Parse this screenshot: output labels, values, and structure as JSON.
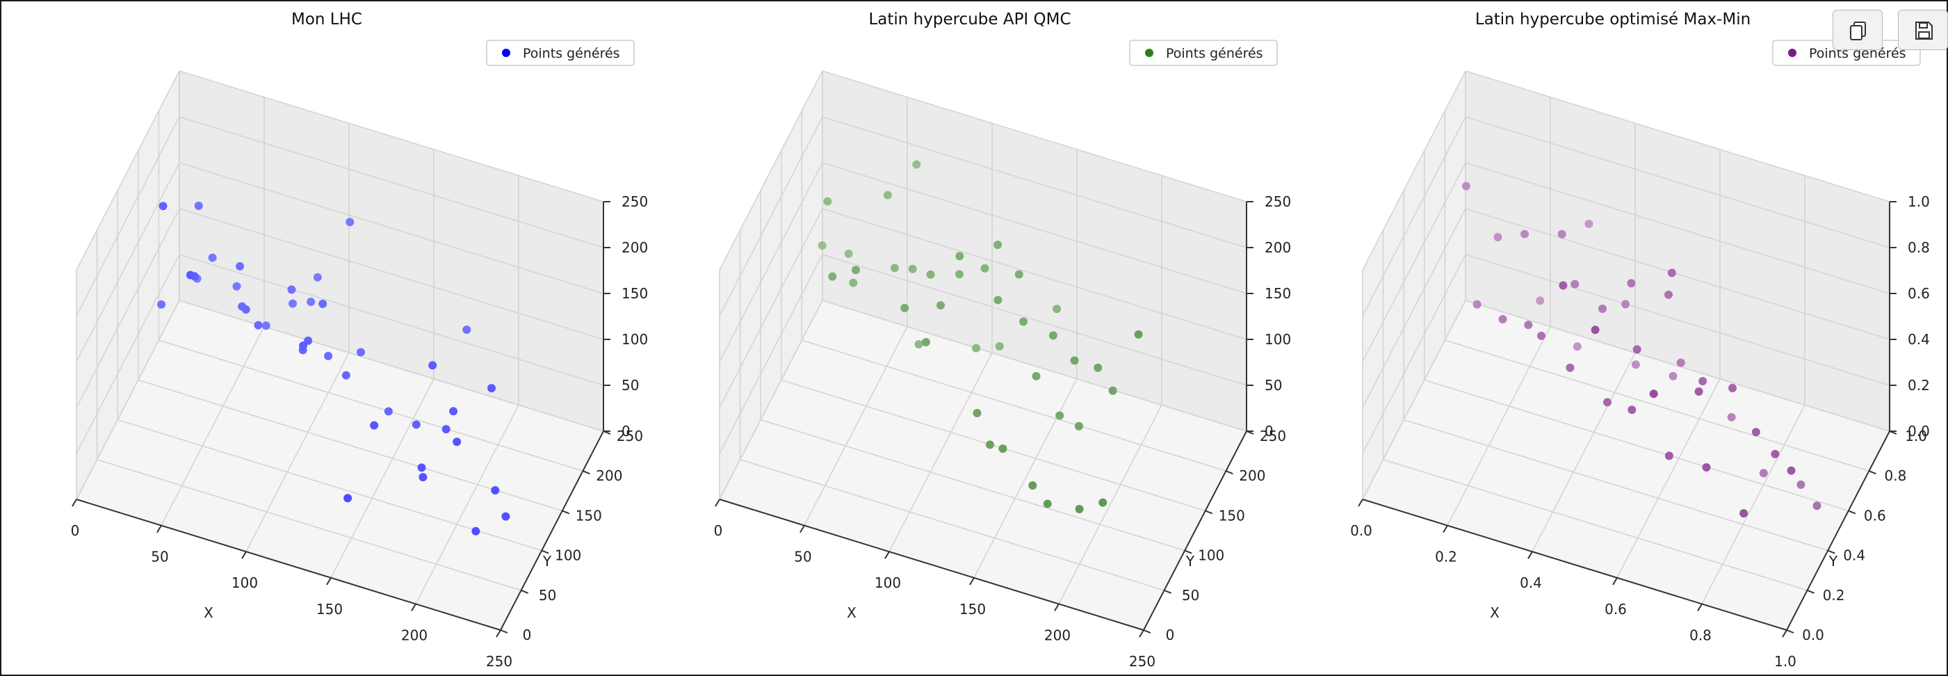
{
  "chart_data": [
    {
      "type": "scatter3d",
      "title": "Mon LHC",
      "xlabel": "X",
      "ylabel": "Y",
      "zlabel": "",
      "xlim": [
        0,
        250
      ],
      "ylim": [
        0,
        250
      ],
      "zlim": [
        0,
        250
      ],
      "xticks": [
        "0",
        "50",
        "100",
        "150",
        "200",
        "250"
      ],
      "yticks": [
        "0",
        "50",
        "100",
        "150",
        "200",
        "250"
      ],
      "zticks": [
        "0",
        "50",
        "100",
        "150",
        "200",
        "250"
      ],
      "grid": true,
      "legend": "top-right",
      "series": [
        {
          "name": "Points générés",
          "color": "#0000ff",
          "points": [
            [
              25,
              190,
              90
            ],
            [
              37,
              178,
              130
            ],
            [
              52,
              175,
              110
            ],
            [
              98,
              182,
              140
            ],
            [
              10,
              165,
              75
            ],
            [
              32,
              165,
              195
            ],
            [
              60,
              155,
              110
            ],
            [
              64,
              148,
              115
            ],
            [
              58,
              158,
              150
            ],
            [
              72,
              145,
              105
            ],
            [
              118,
              178,
              215
            ],
            [
              88,
              160,
              140
            ],
            [
              110,
              145,
              150
            ],
            [
              130,
              155,
              100
            ],
            [
              125,
              140,
              85
            ],
            [
              105,
              130,
              120
            ],
            [
              20,
              128,
              220
            ],
            [
              40,
              122,
              160
            ],
            [
              40,
              112,
              170
            ],
            [
              150,
              140,
              60
            ],
            [
              170,
              125,
              70
            ],
            [
              190,
              115,
              85
            ],
            [
              195,
              112,
              110
            ],
            [
              182,
              115,
              150
            ],
            [
              218,
              110,
              150
            ],
            [
              200,
              100,
              90
            ],
            [
              230,
              95,
              30
            ],
            [
              225,
              90,
              60
            ],
            [
              215,
              84,
              15
            ],
            [
              140,
              82,
              10
            ],
            [
              105,
              118,
              125
            ],
            [
              150,
              105,
              75
            ],
            [
              178,
              105,
              45
            ],
            [
              180,
              100,
              40
            ],
            [
              100,
              138,
              100
            ],
            [
              112,
              150,
              90
            ],
            [
              70,
              172,
              80
            ],
            [
              85,
              175,
              110
            ],
            [
              95,
              178,
              115
            ],
            [
              190,
              165,
              150
            ]
          ]
        }
      ]
    },
    {
      "type": "scatter3d",
      "title": "Latin hypercube API QMC",
      "xlabel": "X",
      "ylabel": "Y",
      "zlabel": "",
      "xlim": [
        0,
        250
      ],
      "ylim": [
        0,
        250
      ],
      "zlim": [
        0,
        250
      ],
      "xticks": [
        "0",
        "50",
        "100",
        "150",
        "200",
        "250"
      ],
      "yticks": [
        "0",
        "50",
        "100",
        "150",
        "200",
        "250"
      ],
      "zticks": [
        "0",
        "50",
        "100",
        "150",
        "200",
        "250"
      ],
      "grid": true,
      "legend": "top-right",
      "series": [
        {
          "name": "Points générés",
          "color": "#2e7d1e",
          "points": [
            [
              12,
              200,
              110
            ],
            [
              30,
              190,
              120
            ],
            [
              20,
              180,
              180
            ],
            [
              55,
              182,
              205
            ],
            [
              70,
              190,
              240
            ],
            [
              40,
              160,
              120
            ],
            [
              62,
              170,
              140
            ],
            [
              75,
              160,
              155
            ],
            [
              88,
              150,
              165
            ],
            [
              105,
              150,
              175
            ],
            [
              120,
              150,
              190
            ],
            [
              130,
              140,
              230
            ],
            [
              145,
              130,
              215
            ],
            [
              110,
              130,
              215
            ],
            [
              100,
              125,
              160
            ],
            [
              135,
              120,
              190
            ],
            [
              150,
              120,
              175
            ],
            [
              170,
              110,
              180
            ],
            [
              185,
              100,
              170
            ],
            [
              200,
              95,
              175
            ],
            [
              210,
              90,
              160
            ],
            [
              230,
              70,
              250
            ],
            [
              35,
              130,
              150
            ],
            [
              50,
              125,
              170
            ],
            [
              80,
              120,
              150
            ],
            [
              95,
              110,
              130
            ],
            [
              160,
              110,
              130
            ],
            [
              175,
              105,
              100
            ],
            [
              190,
              90,
              110
            ],
            [
              130,
              90,
              90
            ],
            [
              140,
              80,
              70
            ],
            [
              150,
              70,
              80
            ],
            [
              170,
              60,
              60
            ],
            [
              180,
              55,
              50
            ],
            [
              200,
              50,
              60
            ],
            [
              215,
              45,
              80
            ],
            [
              160,
              160,
              160
            ],
            [
              125,
              165,
              95
            ],
            [
              110,
              170,
              80
            ],
            [
              75,
              175,
              60
            ]
          ]
        }
      ]
    },
    {
      "type": "scatter3d",
      "title": "Latin hypercube optimisé Max-Min",
      "xlabel": "X",
      "ylabel": "Y",
      "zlabel": "",
      "xlim": [
        0,
        1
      ],
      "ylim": [
        0,
        1
      ],
      "zlim": [
        0,
        1
      ],
      "xticks": [
        "0.0",
        "0.2",
        "0.4",
        "0.6",
        "0.8",
        "1.0"
      ],
      "yticks": [
        "0.0",
        "0.2",
        "0.4",
        "0.6",
        "0.8",
        "1.0"
      ],
      "zticks": [
        "0.0",
        "0.2",
        "0.4",
        "0.6",
        "0.8",
        "1.0"
      ],
      "grid": true,
      "legend": "top-right",
      "series": [
        {
          "name": "Points générés",
          "color": "#7b1a86",
          "points": [
            [
              0.05,
              0.8,
              0.7
            ],
            [
              0.12,
              0.82,
              0.5
            ],
            [
              0.2,
              0.75,
              0.62
            ],
            [
              0.3,
              0.7,
              0.72
            ],
            [
              0.35,
              0.62,
              0.6
            ],
            [
              0.42,
              0.6,
              0.55
            ],
            [
              0.5,
              0.55,
              0.75
            ],
            [
              0.6,
              0.5,
              0.8
            ],
            [
              0.62,
              0.45,
              0.95
            ],
            [
              0.55,
              0.4,
              0.62
            ],
            [
              0.7,
              0.42,
              0.55
            ],
            [
              0.78,
              0.38,
              0.6
            ],
            [
              0.85,
              0.32,
              0.5
            ],
            [
              0.9,
              0.3,
              0.45
            ],
            [
              0.95,
              0.25,
              0.45
            ],
            [
              0.1,
              0.7,
              0.3
            ],
            [
              0.18,
              0.62,
              0.35
            ],
            [
              0.25,
              0.58,
              0.4
            ],
            [
              0.3,
              0.5,
              0.45
            ],
            [
              0.38,
              0.45,
              0.4
            ],
            [
              0.48,
              0.4,
              0.35
            ],
            [
              0.55,
              0.35,
              0.4
            ],
            [
              0.65,
              0.3,
              0.3
            ],
            [
              0.75,
              0.25,
              0.35
            ],
            [
              0.85,
              0.2,
              0.25
            ],
            [
              0.2,
              0.9,
              0.2
            ],
            [
              0.3,
              0.85,
              0.1
            ],
            [
              0.45,
              0.8,
              0.15
            ],
            [
              0.55,
              0.75,
              0.2
            ],
            [
              0.7,
              0.7,
              0.15
            ],
            [
              0.8,
              0.6,
              0.05
            ],
            [
              0.9,
              0.55,
              0.1
            ],
            [
              0.95,
              0.5,
              0.08
            ],
            [
              0.4,
              0.3,
              0.9
            ],
            [
              0.5,
              0.2,
              0.85
            ],
            [
              0.65,
              0.15,
              0.7
            ],
            [
              0.72,
              0.3,
              0.62
            ],
            [
              0.6,
              0.62,
              0.4
            ],
            [
              0.32,
              0.88,
              0.62
            ],
            [
              0.45,
              0.7,
              0.5
            ]
          ]
        }
      ]
    }
  ],
  "toolbar": {
    "copy_icon": "copy-icon",
    "save_icon": "save-icon"
  }
}
